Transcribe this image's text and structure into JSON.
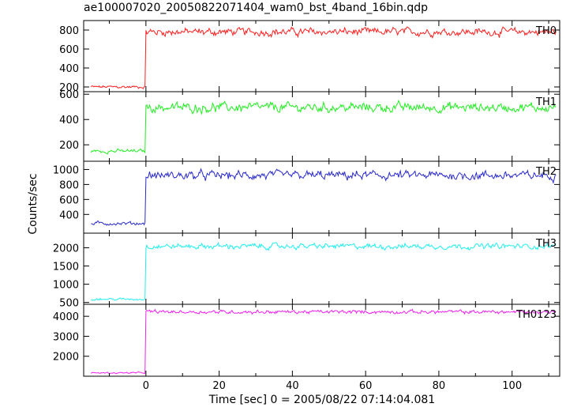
{
  "title": "ae100007020_20050822071404_wam0_bst_4band_16bin.qdp",
  "chart_data": {
    "type": "line",
    "title": "ae100007020_20050822071404_wam0_bst_4band_16bin.qdp",
    "xlabel": "Time [sec] 0 = 2005/08/22 07:14:04.081",
    "ylabel": "Counts/sec",
    "xlim": [
      -17,
      113
    ],
    "xticks": [
      0,
      20,
      40,
      60,
      80,
      100
    ],
    "grid": false,
    "panels": [
      {
        "name": "TH0",
        "color": "#ff2020",
        "ylim": [
          150,
          900
        ],
        "yticks": [
          200,
          400,
          600,
          800
        ],
        "pre_level": 200,
        "post_level": 780,
        "noise": 38
      },
      {
        "name": "TH1",
        "color": "#22ee22",
        "ylim": [
          70,
          620
        ],
        "yticks": [
          200,
          400,
          600
        ],
        "pre_level": 150,
        "post_level": 495,
        "noise": 35
      },
      {
        "name": "TH2",
        "color": "#2a2acc",
        "ylim": [
          150,
          1110
        ],
        "yticks": [
          400,
          600,
          800,
          1000
        ],
        "pre_level": 280,
        "post_level": 920,
        "noise": 55
      },
      {
        "name": "TH3",
        "color": "#22eeee",
        "ylim": [
          450,
          2400
        ],
        "yticks": [
          500,
          1000,
          1500,
          2000
        ],
        "pre_level": 590,
        "post_level": 2040,
        "noise": 70
      },
      {
        "name": "TH0123",
        "color": "#ee22ee",
        "ylim": [
          1000,
          4600
        ],
        "yticks": [
          2000,
          3000,
          4000
        ],
        "pre_level": 1170,
        "post_level": 4220,
        "noise": 85
      }
    ]
  }
}
